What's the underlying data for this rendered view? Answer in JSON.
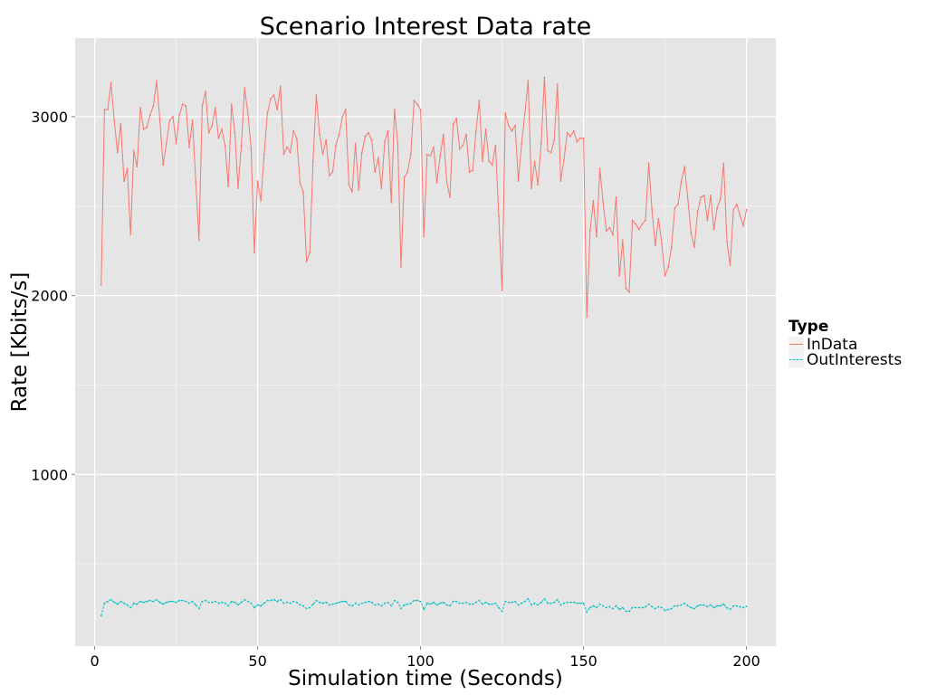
{
  "chart_data": {
    "type": "line",
    "title": "Scenario Interest Data rate",
    "xlabel": "Simulation time (Seconds)",
    "ylabel": "Rate [Kbits/s]",
    "xlim": [
      -6,
      209
    ],
    "ylim": [
      40,
      3440
    ],
    "x_ticks": [
      0,
      50,
      100,
      150,
      200
    ],
    "y_ticks": [
      1000,
      2000,
      3000
    ],
    "grid": true,
    "legend": {
      "title": "Type",
      "position": "right"
    },
    "series": [
      {
        "name": "InData",
        "color": "#F8766D",
        "x": [
          2,
          3,
          4,
          5,
          6,
          7,
          8,
          9,
          10,
          11,
          12,
          13,
          14,
          15,
          16,
          17,
          18,
          19,
          20,
          21,
          22,
          23,
          24,
          25,
          26,
          27,
          28,
          29,
          30,
          31,
          32,
          33,
          34,
          35,
          36,
          37,
          38,
          39,
          40,
          41,
          42,
          43,
          44,
          45,
          46,
          47,
          48,
          49,
          50,
          51,
          52,
          53,
          54,
          55,
          56,
          57,
          58,
          59,
          60,
          61,
          62,
          63,
          64,
          65,
          66,
          67,
          68,
          69,
          70,
          71,
          72,
          73,
          74,
          75,
          76,
          77,
          78,
          79,
          80,
          81,
          82,
          83,
          84,
          85,
          86,
          87,
          88,
          89,
          90,
          91,
          92,
          93,
          94,
          95,
          96,
          97,
          98,
          99,
          100,
          101,
          102,
          103,
          104,
          105,
          106,
          107,
          108,
          109,
          110,
          111,
          112,
          113,
          114,
          115,
          116,
          117,
          118,
          119,
          120,
          121,
          122,
          123,
          124,
          125,
          126,
          127,
          128,
          129,
          130,
          131,
          132,
          133,
          134,
          135,
          136,
          137,
          138,
          139,
          140,
          141,
          142,
          143,
          144,
          145,
          146,
          147,
          148,
          149,
          150,
          151,
          152,
          153,
          154,
          155,
          156,
          157,
          158,
          159,
          160,
          161,
          162,
          163,
          164,
          165,
          166,
          167,
          168,
          169,
          170,
          171,
          172,
          173,
          174,
          175,
          176,
          177,
          178,
          179,
          180,
          181,
          182,
          183,
          184,
          185,
          186,
          187,
          188,
          189,
          190,
          191,
          192,
          193,
          194,
          195,
          196,
          197,
          198,
          199,
          200
        ],
        "y": [
          2060,
          3040,
          3040,
          3190,
          2980,
          2800,
          2960,
          2640,
          2710,
          2340,
          2810,
          2720,
          3050,
          2930,
          2940,
          3010,
          3060,
          3200,
          2980,
          2730,
          2850,
          2980,
          3000,
          2850,
          3010,
          3070,
          3060,
          2830,
          2980,
          2640,
          2310,
          3060,
          3140,
          2910,
          2950,
          3050,
          2880,
          2930,
          2840,
          2610,
          3070,
          2910,
          2600,
          2840,
          3160,
          3020,
          2820,
          2240,
          2640,
          2530,
          2790,
          3020,
          3100,
          3120,
          3040,
          3170,
          2790,
          2830,
          2800,
          2920,
          2880,
          2630,
          2580,
          2190,
          2240,
          2750,
          3120,
          2900,
          2790,
          2870,
          2670,
          2690,
          2840,
          2900,
          3000,
          3040,
          2620,
          2580,
          2850,
          2590,
          2800,
          2890,
          2910,
          2870,
          2690,
          2770,
          2600,
          2860,
          2920,
          2520,
          3040,
          2850,
          2160,
          2660,
          2690,
          2790,
          3090,
          3070,
          3040,
          2330,
          2790,
          2780,
          2830,
          2630,
          2780,
          2900,
          2640,
          2550,
          2960,
          2990,
          2820,
          2840,
          2900,
          2690,
          2700,
          2920,
          3090,
          2750,
          2930,
          2750,
          2730,
          2840,
          2440,
          2030,
          3020,
          2950,
          2920,
          2950,
          2640,
          2850,
          3020,
          3200,
          2600,
          2750,
          2620,
          2850,
          3220,
          2810,
          2800,
          2870,
          3180,
          2640,
          2760,
          2910,
          2890,
          2920,
          2860,
          2880,
          2880,
          1880,
          2360,
          2530,
          2330,
          2710,
          2520,
          2360,
          2380,
          2340,
          2550,
          2110,
          2310,
          2040,
          2020,
          2420,
          2400,
          2370,
          2400,
          2420,
          2740,
          2480,
          2280,
          2430,
          2290,
          2110,
          2160,
          2270,
          2490,
          2510,
          2640,
          2720,
          2540,
          2350,
          2270,
          2470,
          2550,
          2560,
          2420,
          2560,
          2370,
          2490,
          2540,
          2740,
          2300,
          2170,
          2480,
          2510,
          2450,
          2390,
          2480
        ]
      },
      {
        "name": "OutInterests",
        "color": "#00BFC4",
        "x": [
          2,
          3,
          4,
          5,
          6,
          7,
          8,
          9,
          10,
          11,
          12,
          13,
          14,
          15,
          16,
          17,
          18,
          19,
          20,
          21,
          22,
          23,
          24,
          25,
          26,
          27,
          28,
          29,
          30,
          31,
          32,
          33,
          34,
          35,
          36,
          37,
          38,
          39,
          40,
          41,
          42,
          43,
          44,
          45,
          46,
          47,
          48,
          49,
          50,
          51,
          52,
          53,
          54,
          55,
          56,
          57,
          58,
          59,
          60,
          61,
          62,
          63,
          64,
          65,
          66,
          67,
          68,
          69,
          70,
          71,
          72,
          73,
          74,
          75,
          76,
          77,
          78,
          79,
          80,
          81,
          82,
          83,
          84,
          85,
          86,
          87,
          88,
          89,
          90,
          91,
          92,
          93,
          94,
          95,
          96,
          97,
          98,
          99,
          100,
          101,
          102,
          103,
          104,
          105,
          106,
          107,
          108,
          109,
          110,
          111,
          112,
          113,
          114,
          115,
          116,
          117,
          118,
          119,
          120,
          121,
          122,
          123,
          124,
          125,
          126,
          127,
          128,
          129,
          130,
          131,
          132,
          133,
          134,
          135,
          136,
          137,
          138,
          139,
          140,
          141,
          142,
          143,
          144,
          145,
          146,
          147,
          148,
          149,
          150,
          151,
          152,
          153,
          154,
          155,
          156,
          157,
          158,
          159,
          160,
          161,
          162,
          163,
          164,
          165,
          166,
          167,
          168,
          169,
          170,
          171,
          172,
          173,
          174,
          175,
          176,
          177,
          178,
          179,
          180,
          181,
          182,
          183,
          184,
          185,
          186,
          187,
          188,
          189,
          190,
          191,
          192,
          193,
          194,
          195,
          196,
          197,
          198,
          199,
          200
        ],
        "y": [
          210,
          280,
          290,
          300,
          285,
          275,
          290,
          280,
          270,
          255,
          280,
          275,
          290,
          285,
          290,
          295,
          290,
          300,
          285,
          275,
          285,
          290,
          290,
          285,
          295,
          295,
          290,
          280,
          290,
          270,
          250,
          290,
          295,
          285,
          285,
          290,
          280,
          285,
          280,
          265,
          290,
          285,
          270,
          285,
          300,
          290,
          280,
          255,
          270,
          265,
          280,
          295,
          295,
          300,
          290,
          300,
          280,
          285,
          280,
          290,
          285,
          270,
          265,
          250,
          255,
          275,
          295,
          285,
          280,
          285,
          270,
          275,
          280,
          285,
          290,
          290,
          270,
          265,
          280,
          270,
          280,
          285,
          290,
          285,
          270,
          275,
          265,
          280,
          285,
          265,
          295,
          285,
          250,
          270,
          275,
          280,
          295,
          295,
          290,
          245,
          280,
          275,
          285,
          270,
          280,
          285,
          270,
          265,
          290,
          290,
          280,
          280,
          285,
          275,
          275,
          285,
          295,
          275,
          285,
          275,
          275,
          280,
          255,
          235,
          290,
          285,
          285,
          290,
          270,
          280,
          290,
          305,
          270,
          280,
          270,
          285,
          305,
          280,
          280,
          285,
          300,
          270,
          280,
          285,
          285,
          285,
          280,
          280,
          280,
          230,
          255,
          265,
          255,
          275,
          265,
          255,
          260,
          250,
          265,
          245,
          255,
          235,
          235,
          255,
          255,
          255,
          255,
          260,
          275,
          260,
          250,
          260,
          255,
          240,
          245,
          250,
          265,
          265,
          270,
          280,
          265,
          255,
          250,
          265,
          270,
          270,
          260,
          270,
          255,
          265,
          265,
          275,
          255,
          245,
          265,
          265,
          260,
          255,
          262
        ]
      }
    ]
  }
}
